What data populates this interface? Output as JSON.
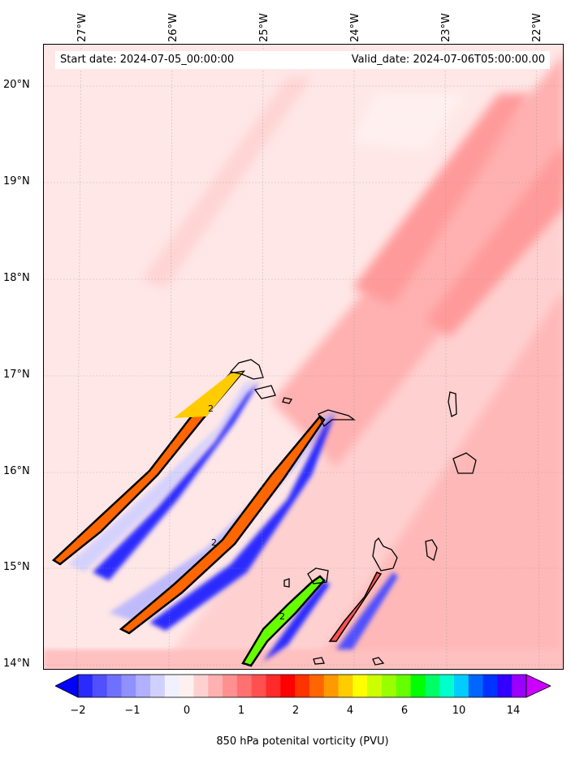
{
  "map": {
    "start_date": "Start date: 2024-07-05_00:00:00",
    "valid_date": "Valid_date: 2024-07-06T05:00:00.00",
    "lon_labels": [
      "27°W",
      "26°W",
      "25°W",
      "24°W",
      "23°W",
      "22°W"
    ],
    "lat_labels": [
      "20°N",
      "19°N",
      "18°N",
      "17°N",
      "16°N",
      "15°N",
      "14°N"
    ],
    "contour_label": "2"
  },
  "colorbar": {
    "label": "850 hPa potenital vorticity (PVU)",
    "ticks": [
      "−2",
      "−1",
      "0",
      "1",
      "2",
      "4",
      "6",
      "10",
      "14"
    ],
    "colors": [
      "#0000ff",
      "#2a2aff",
      "#5050ff",
      "#7070ff",
      "#9090ff",
      "#b0b0ff",
      "#d0d0ff",
      "#f0f0ff",
      "#fff0f0",
      "#ffd0d0",
      "#ffb0b0",
      "#ff9090",
      "#ff7070",
      "#ff5050",
      "#ff2a2a",
      "#ff0000",
      "#ff3300",
      "#ff6600",
      "#ff9900",
      "#ffcc00",
      "#ffff00",
      "#ccff00",
      "#99ff00",
      "#66ff00",
      "#00ff00",
      "#00ff66",
      "#00ffcc",
      "#00ccff",
      "#0066ff",
      "#0033ff",
      "#3300ff",
      "#9900ff",
      "#cc00ff"
    ]
  }
}
